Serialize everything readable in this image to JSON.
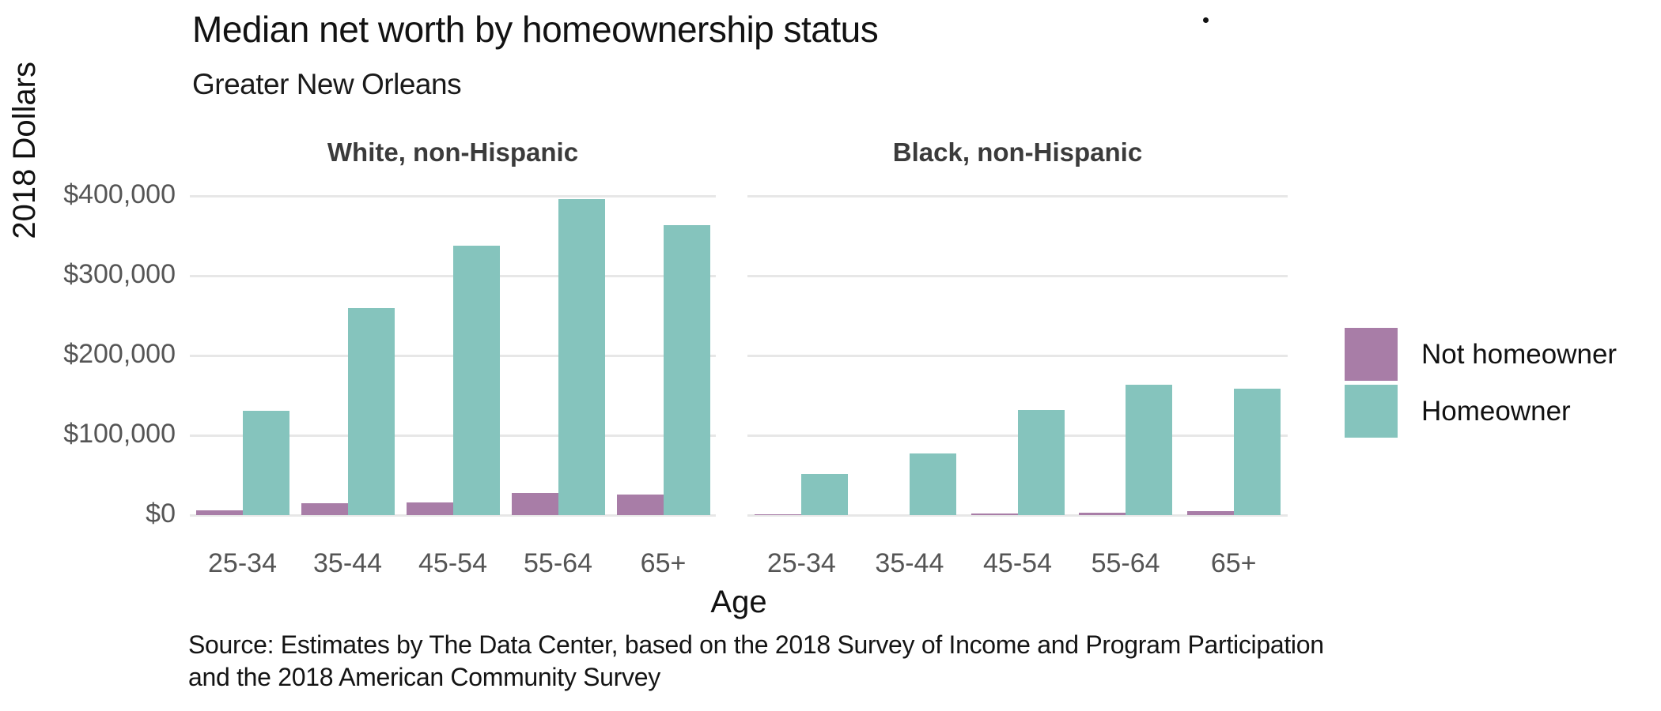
{
  "title": "Median net worth by homeownership status",
  "subtitle": "Greater New Orleans",
  "source": {
    "line1": "Source: Estimates by The Data Center, based on the 2018 Survey of Income and Program Participation",
    "line2": "and the 2018 American Community Survey"
  },
  "colors": {
    "not_homeowner": "#a87da7",
    "homeowner": "#85c4bd",
    "gridline": "#e7e7e7",
    "tick_label": "#555555",
    "facet_title": "#3b3b3b",
    "text": "#111111"
  },
  "legend": {
    "items": [
      {
        "label": "Not homeowner",
        "color": "#a87da7"
      },
      {
        "label": "Homeowner",
        "color": "#85c4bd"
      }
    ]
  },
  "chart_data": {
    "type": "bar",
    "title": "Median net worth by homeownership status",
    "subtitle": "Greater New Orleans",
    "xlabel": "Age",
    "ylabel": "2018 Dollars",
    "ylim": [
      0,
      417000
    ],
    "grid": "horizontal",
    "legend_position": "right",
    "categories": [
      "25-34",
      "35-44",
      "45-54",
      "55-64",
      "65+"
    ],
    "yticks": [
      {
        "value": 0,
        "label": "$0"
      },
      {
        "value": 100000,
        "label": "$100,000"
      },
      {
        "value": 200000,
        "label": "$200,000"
      },
      {
        "value": 300000,
        "label": "$300,000"
      },
      {
        "value": 400000,
        "label": "$400,000"
      }
    ],
    "facets": [
      {
        "label": "White, non-Hispanic",
        "series": [
          {
            "name": "Not homeowner",
            "color": "#a87da7",
            "values": [
              6000,
              15000,
              16000,
              28000,
              26000
            ]
          },
          {
            "name": "Homeowner",
            "color": "#85c4bd",
            "values": [
              131000,
              259000,
              338000,
              396000,
              363000
            ]
          }
        ]
      },
      {
        "label": "Black, non-Hispanic",
        "series": [
          {
            "name": "Not homeowner",
            "color": "#a87da7",
            "values": [
              1000,
              0,
              2000,
              3000,
              5000
            ]
          },
          {
            "name": "Homeowner",
            "color": "#85c4bd",
            "values": [
              51000,
              77000,
              132000,
              163000,
              158000
            ]
          }
        ]
      }
    ]
  }
}
